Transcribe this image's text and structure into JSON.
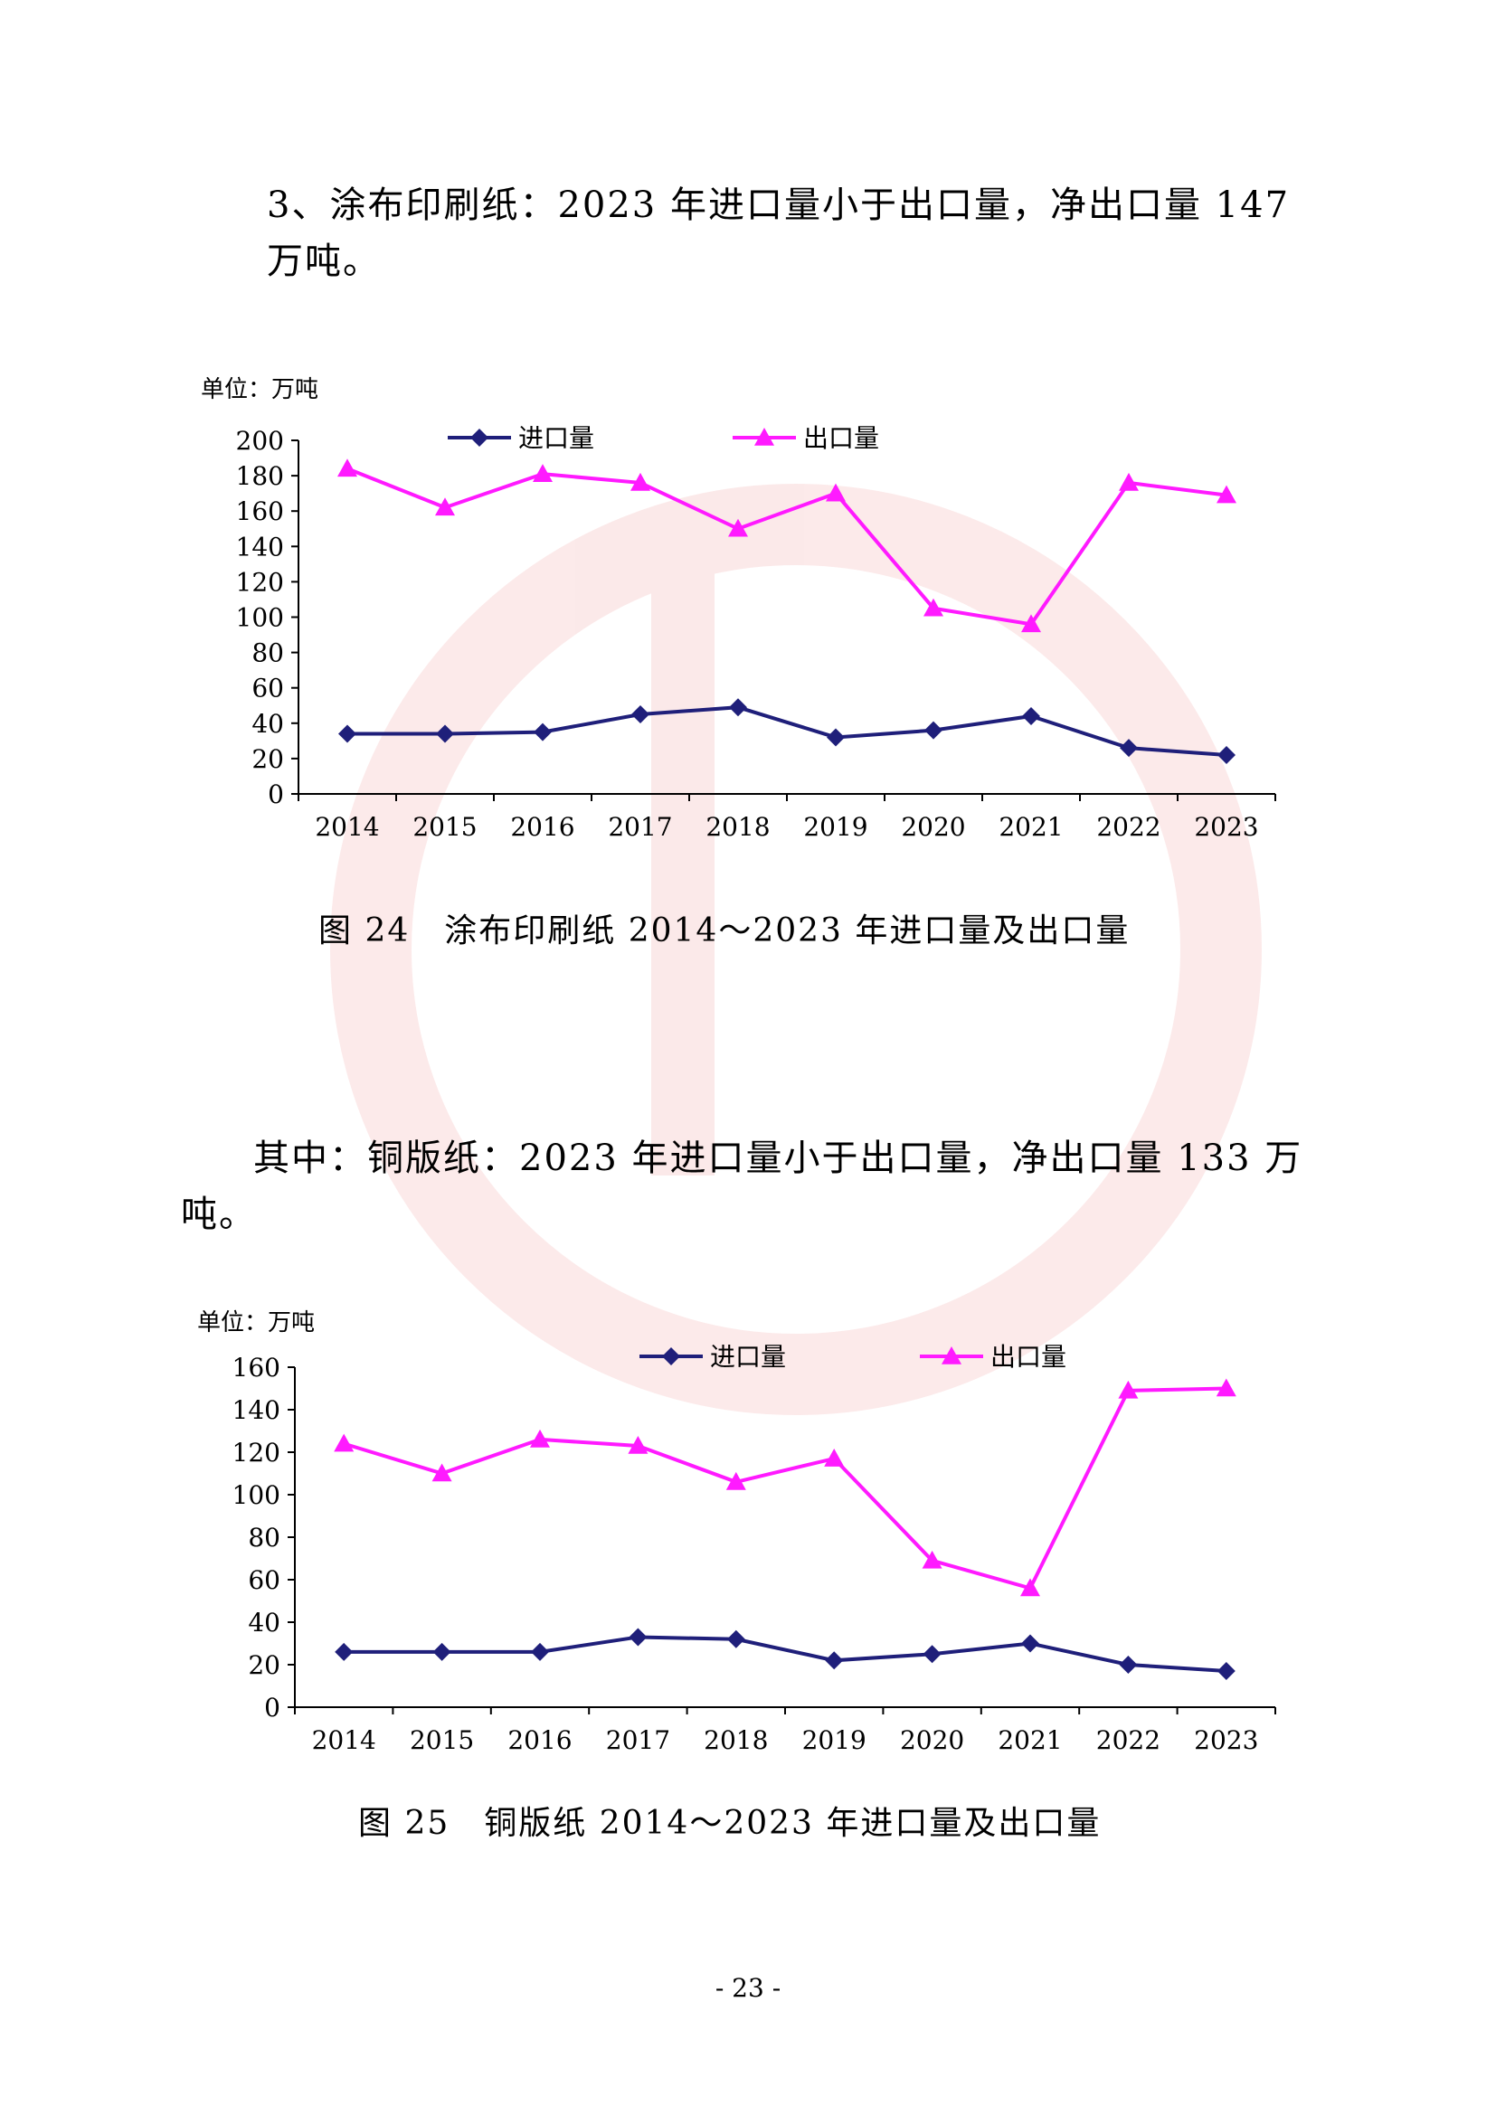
{
  "paragraphs": {
    "p1": "3、涂布印刷纸：2023 年进口量小于出口量，净出口量 147 万吨。",
    "p2": "其中：铜版纸：2023 年进口量小于出口量，净出口量 133 万吨。"
  },
  "captions": {
    "c1": "图 24　涂布印刷纸 2014～2023 年进口量及出口量",
    "c2": "图 25　铜版纸 2014～2023 年进口量及出口量"
  },
  "page_number": "- 23 -",
  "colors": {
    "import": "#1f1f7a",
    "export": "#ff1aff"
  },
  "chart_data": [
    {
      "type": "line",
      "title": "",
      "unit_label": "单位：万吨",
      "categories": [
        "2014",
        "2015",
        "2016",
        "2017",
        "2018",
        "2019",
        "2020",
        "2021",
        "2022",
        "2023"
      ],
      "series": [
        {
          "name": "进口量",
          "marker": "diamond",
          "values": [
            34,
            34,
            35,
            45,
            49,
            32,
            36,
            44,
            26,
            22
          ]
        },
        {
          "name": "出口量",
          "marker": "triangle",
          "values": [
            184,
            162,
            181,
            176,
            150,
            170,
            105,
            96,
            176,
            169
          ]
        }
      ],
      "ylim": [
        0,
        200
      ],
      "yticks": [
        0,
        20,
        40,
        60,
        80,
        100,
        120,
        140,
        160,
        180,
        200
      ],
      "legend": "top",
      "grid": false
    },
    {
      "type": "line",
      "title": "",
      "unit_label": "单位：万吨",
      "categories": [
        "2014",
        "2015",
        "2016",
        "2017",
        "2018",
        "2019",
        "2020",
        "2021",
        "2022",
        "2023"
      ],
      "series": [
        {
          "name": "进口量",
          "marker": "diamond",
          "values": [
            26,
            26,
            26,
            33,
            32,
            22,
            25,
            30,
            20,
            17
          ]
        },
        {
          "name": "出口量",
          "marker": "triangle",
          "values": [
            124,
            110,
            126,
            123,
            106,
            117,
            69,
            56,
            149,
            150
          ]
        }
      ],
      "ylim": [
        0,
        160
      ],
      "yticks": [
        0,
        20,
        40,
        60,
        80,
        100,
        120,
        140,
        160
      ],
      "legend": "top",
      "grid": false
    }
  ]
}
